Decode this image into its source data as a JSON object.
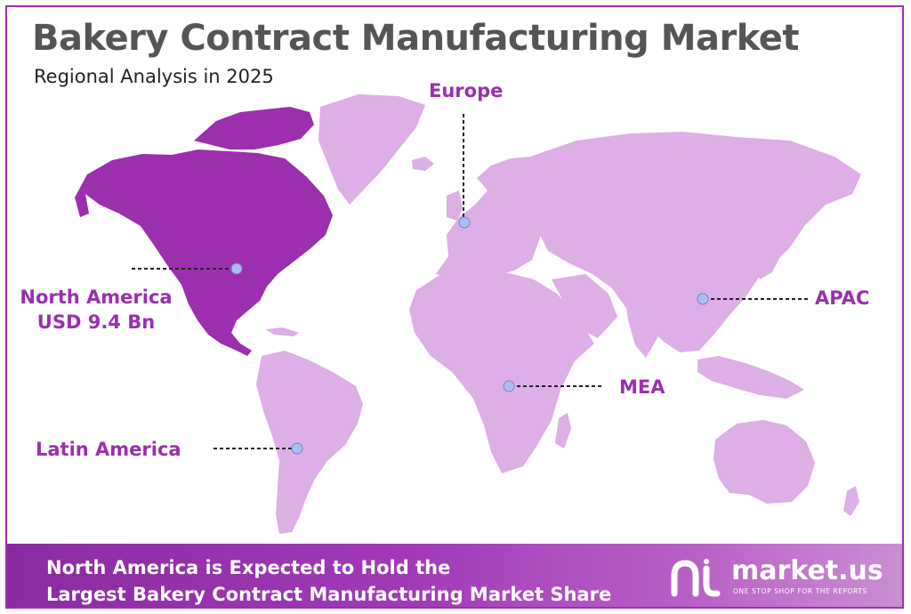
{
  "title": "Bakery Contract Manufacturing Market",
  "subtitle": "Regional Analysis in 2025",
  "regions": {
    "europe": {
      "name": "Europe"
    },
    "north_america": {
      "name": "North America",
      "value": "USD 9.4 Bn",
      "highlighted": true
    },
    "apac": {
      "name": "APAC"
    },
    "mea": {
      "name": "MEA"
    },
    "latin_america": {
      "name": "Latin America"
    }
  },
  "footer": {
    "line1": "North America is Expected to Hold the",
    "line2": "Largest Bakery Contract Manufacturing Market Share"
  },
  "brand": {
    "name": "market.us",
    "tagline": "ONE STOP SHOP FOR THE REPORTS"
  },
  "colors": {
    "highlight": "#9b2fae",
    "land": "#deaee6",
    "marker": "#a9bff0",
    "title": "#555555"
  }
}
